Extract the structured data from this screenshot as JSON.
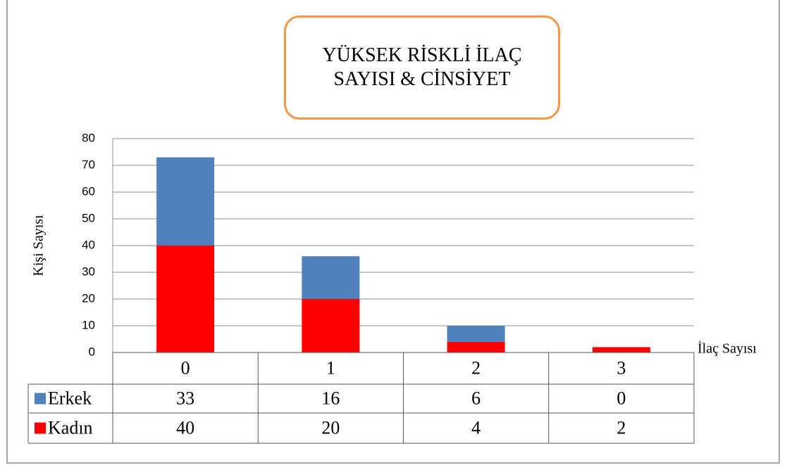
{
  "chart_data": {
    "type": "bar",
    "stacked": true,
    "title": "YÜKSEK RİSKLİ İLAÇ SAYISI & CİNSİYET",
    "y_label": "Kişi Sayısı",
    "x_label": "İlaç Sayısı",
    "categories": [
      "0",
      "1",
      "2",
      "3"
    ],
    "series": [
      {
        "name": "Erkek",
        "color": "#4f81bd",
        "values": [
          33,
          16,
          6,
          0
        ]
      },
      {
        "name": "Kadın",
        "color": "#ff0000",
        "values": [
          40,
          20,
          4,
          2
        ]
      }
    ],
    "ylim": [
      0,
      80
    ],
    "yticks": [
      0,
      10,
      20,
      30,
      40,
      50,
      60,
      70,
      80
    ],
    "grid": true,
    "data_table": true
  }
}
